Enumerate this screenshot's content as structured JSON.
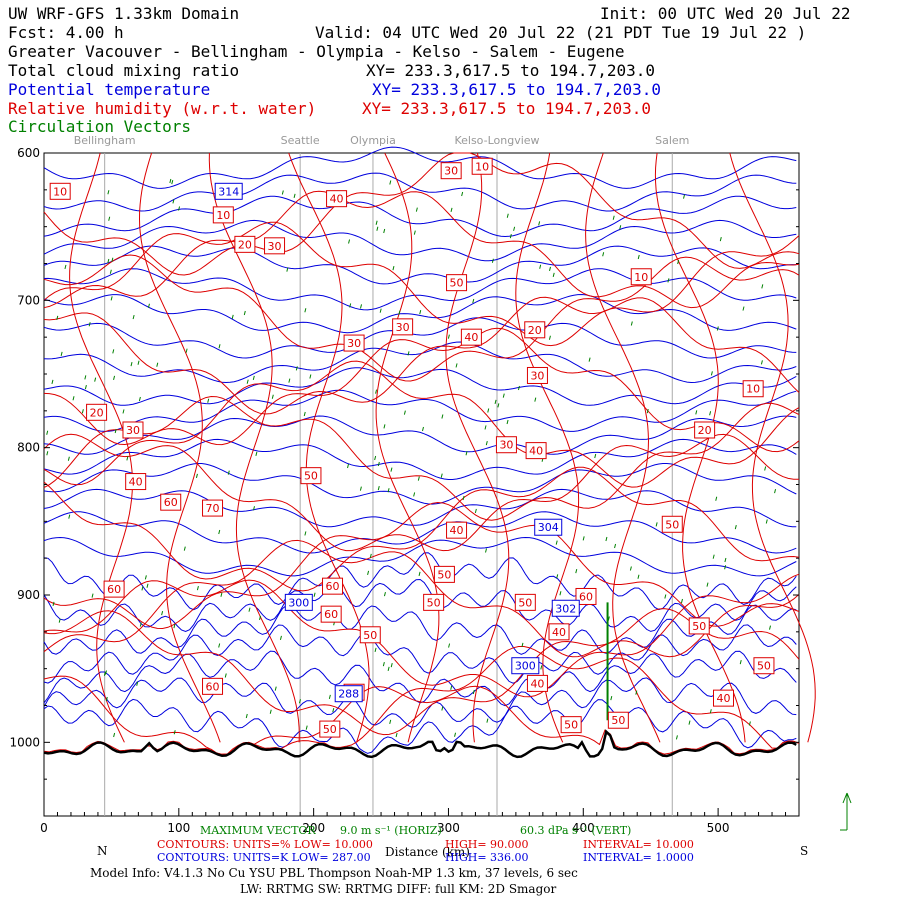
{
  "header": {
    "model": "UW WRF-GFS 1.33km Domain",
    "init": "Init: 00 UTC Wed 20 Jul 22",
    "fcst": "Fcst:    4.00 h",
    "valid": "Valid: 04 UTC Wed 20 Jul 22   (21 PDT Tue 19 Jul 22  )",
    "region": "Greater Vacouver - Bellingham - Olympia - Kelso - Salem - Eugene",
    "fields": [
      {
        "name": "Total cloud mixing ratio",
        "xy": "XY= 233.3,617.5 to 194.7,203.0",
        "color": "#000000"
      },
      {
        "name": "Potential temperature",
        "xy": "XY= 233.3,617.5 to 194.7,203.0",
        "color": "#0000dd"
      },
      {
        "name": "Relative humidity (w.r.t. water)",
        "xy": "XY= 233.3,617.5 to 194.7,203.0",
        "color": "#dd0000"
      },
      {
        "name": "Circulation Vectors",
        "xy": "",
        "color": "#008000"
      }
    ]
  },
  "locations": [
    "Bellingham",
    "Seattle",
    "Olympia",
    "Kelso-Longview",
    "Salem"
  ],
  "footer": {
    "max_vector": "MAXIMUM VECTOR",
    "max_vector_value": "9.0 m s⁻¹ (HORIZ)",
    "max_vector_vert": "60.3 dPa s⁻¹ (VERT)",
    "rh_contours": "CONTOURS:  UNITS=%   LOW=   10.000",
    "rh_high": "HIGH=   90.000",
    "rh_interval": "INTERVAL=    10.000",
    "th_contours": "CONTOURS:  UNITS=K   LOW=   287.00",
    "th_high": "HIGH=   336.00",
    "th_interval": "INTERVAL=    1.0000",
    "x_left_end": "N",
    "x_right_end": "S",
    "xlabel": "Distance (km)",
    "model_info": "Model Info: V4.1.3    No Cu    YSU PBL  Thompson     Noah-MP    1.3 km,   37 levels,     6 sec",
    "model_info2": "LW: RRTMG  SW: RRTMG    DIFF: full    KM: 2D Smagor"
  },
  "chart_data": {
    "type": "contour",
    "xlabel": "Distance (km)",
    "ylabel": "Pressure (hPa)",
    "x_range": [
      0,
      560
    ],
    "y_range": [
      1050,
      600
    ],
    "x_ticks": [
      0,
      100,
      200,
      300,
      400,
      500
    ],
    "y_ticks": [
      600,
      700,
      800,
      900,
      1000
    ],
    "y_tick_labels": [
      "600",
      "700",
      "800",
      "900",
      "1000"
    ],
    "location_x": [
      45,
      190,
      244,
      336,
      466
    ],
    "rh_labels": [
      {
        "x": 12,
        "y": 626,
        "v": "10"
      },
      {
        "x": 133,
        "y": 642,
        "v": "10"
      },
      {
        "x": 149,
        "y": 662,
        "v": "20"
      },
      {
        "x": 171,
        "y": 663,
        "v": "30"
      },
      {
        "x": 217,
        "y": 631,
        "v": "40"
      },
      {
        "x": 302,
        "y": 612,
        "v": "30"
      },
      {
        "x": 325,
        "y": 609,
        "v": "10"
      },
      {
        "x": 306,
        "y": 688,
        "v": "50"
      },
      {
        "x": 443,
        "y": 684,
        "v": "10"
      },
      {
        "x": 266,
        "y": 718,
        "v": "30"
      },
      {
        "x": 317,
        "y": 725,
        "v": "40"
      },
      {
        "x": 364,
        "y": 720,
        "v": "20"
      },
      {
        "x": 230,
        "y": 729,
        "v": "30"
      },
      {
        "x": 366,
        "y": 751,
        "v": "30"
      },
      {
        "x": 526,
        "y": 760,
        "v": "10"
      },
      {
        "x": 39,
        "y": 776,
        "v": "20"
      },
      {
        "x": 66,
        "y": 788,
        "v": "30"
      },
      {
        "x": 343,
        "y": 798,
        "v": "30"
      },
      {
        "x": 365,
        "y": 802,
        "v": "40"
      },
      {
        "x": 490,
        "y": 788,
        "v": "20"
      },
      {
        "x": 198,
        "y": 819,
        "v": "50"
      },
      {
        "x": 68,
        "y": 823,
        "v": "40"
      },
      {
        "x": 94,
        "y": 837,
        "v": "60"
      },
      {
        "x": 125,
        "y": 841,
        "v": "70"
      },
      {
        "x": 466,
        "y": 852,
        "v": "50"
      },
      {
        "x": 306,
        "y": 856,
        "v": "40"
      },
      {
        "x": 52,
        "y": 896,
        "v": "60"
      },
      {
        "x": 214,
        "y": 894,
        "v": "60"
      },
      {
        "x": 297,
        "y": 886,
        "v": "50"
      },
      {
        "x": 289,
        "y": 905,
        "v": "50"
      },
      {
        "x": 357,
        "y": 905,
        "v": "50"
      },
      {
        "x": 402,
        "y": 901,
        "v": "60"
      },
      {
        "x": 213,
        "y": 913,
        "v": "60"
      },
      {
        "x": 382,
        "y": 925,
        "v": "40"
      },
      {
        "x": 486,
        "y": 921,
        "v": "50"
      },
      {
        "x": 242,
        "y": 927,
        "v": "50"
      },
      {
        "x": 534,
        "y": 948,
        "v": "50"
      },
      {
        "x": 125,
        "y": 962,
        "v": "60"
      },
      {
        "x": 366,
        "y": 960,
        "v": "40"
      },
      {
        "x": 230,
        "y": 966,
        "v": "60"
      },
      {
        "x": 504,
        "y": 970,
        "v": "40"
      },
      {
        "x": 391,
        "y": 988,
        "v": "50"
      },
      {
        "x": 426,
        "y": 985,
        "v": "50"
      },
      {
        "x": 212,
        "y": 991,
        "v": "50"
      }
    ],
    "theta_labels": [
      {
        "x": 137,
        "y": 626,
        "v": "314"
      },
      {
        "x": 374,
        "y": 854,
        "v": "304"
      },
      {
        "x": 189,
        "y": 905,
        "v": "300"
      },
      {
        "x": 387,
        "y": 909,
        "v": "302"
      },
      {
        "x": 357,
        "y": 948,
        "v": "300"
      },
      {
        "x": 226,
        "y": 967,
        "v": "288"
      }
    ]
  }
}
